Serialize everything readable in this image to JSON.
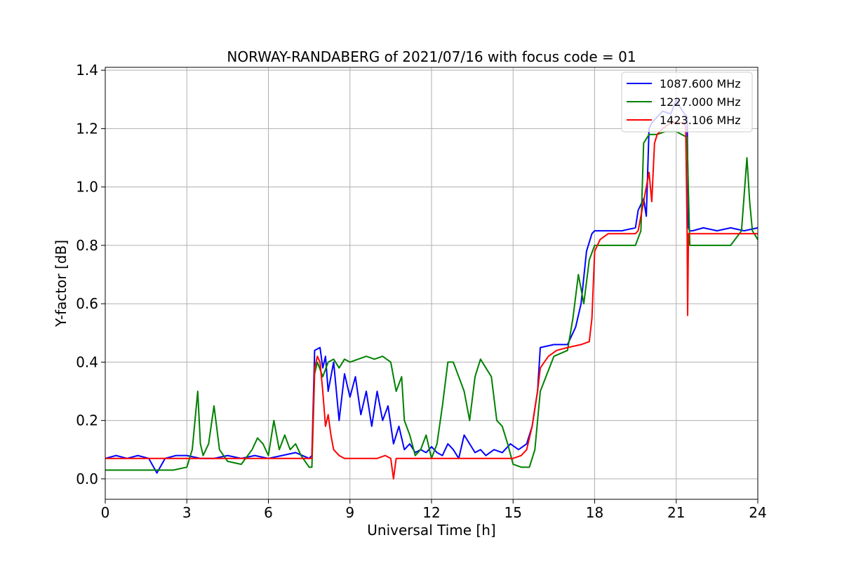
{
  "chart_data": {
    "type": "line",
    "title": "NORWAY-RANDABERG of 2021/07/16 with focus code = 01",
    "xlabel": "Universal Time [h]",
    "ylabel": "Y-factor [dB]",
    "xlim": [
      0,
      24
    ],
    "ylim": [
      -0.07,
      1.41
    ],
    "xticks": [
      0,
      3,
      6,
      9,
      12,
      15,
      18,
      21,
      24
    ],
    "xtick_labels": [
      "0",
      "3",
      "6",
      "9",
      "12",
      "15",
      "18",
      "21",
      "24"
    ],
    "yticks": [
      0.0,
      0.2,
      0.4,
      0.6,
      0.8,
      1.0,
      1.2,
      1.4
    ],
    "ytick_labels": [
      "0.0",
      "0.2",
      "0.4",
      "0.6",
      "0.8",
      "1.0",
      "1.2",
      "1.4"
    ],
    "grid": true,
    "legend_position": "top-right",
    "series": [
      {
        "name": "1087.600 MHz",
        "color": "#0000ff",
        "x": [
          0,
          0.4,
          0.8,
          1.2,
          1.6,
          1.9,
          2.2,
          2.6,
          3.0,
          3.5,
          4.0,
          4.5,
          5.0,
          5.5,
          6.0,
          6.5,
          7.0,
          7.5,
          7.6,
          7.7,
          7.9,
          8.0,
          8.1,
          8.2,
          8.4,
          8.6,
          8.8,
          9.0,
          9.2,
          9.4,
          9.6,
          9.8,
          10.0,
          10.2,
          10.4,
          10.6,
          10.8,
          11.0,
          11.2,
          11.4,
          11.6,
          11.8,
          12.0,
          12.2,
          12.4,
          12.6,
          12.8,
          13.0,
          13.2,
          13.4,
          13.6,
          13.8,
          14.0,
          14.3,
          14.6,
          14.9,
          15.2,
          15.5,
          15.7,
          15.9,
          16.0,
          16.5,
          17.0,
          17.3,
          17.5,
          17.7,
          17.9,
          18.0,
          18.5,
          19.0,
          19.5,
          19.6,
          19.8,
          19.9,
          20.0,
          20.1,
          20.3,
          20.5,
          20.8,
          21.0,
          21.1,
          21.3,
          21.4,
          21.45,
          21.5,
          21.6,
          22.0,
          22.5,
          23.0,
          23.5,
          24.0
        ],
        "y": [
          0.07,
          0.08,
          0.07,
          0.08,
          0.07,
          0.02,
          0.07,
          0.08,
          0.08,
          0.07,
          0.07,
          0.08,
          0.07,
          0.08,
          0.07,
          0.08,
          0.09,
          0.07,
          0.08,
          0.44,
          0.45,
          0.38,
          0.42,
          0.3,
          0.4,
          0.2,
          0.36,
          0.28,
          0.35,
          0.22,
          0.3,
          0.18,
          0.3,
          0.2,
          0.25,
          0.12,
          0.18,
          0.1,
          0.12,
          0.09,
          0.1,
          0.09,
          0.11,
          0.09,
          0.08,
          0.12,
          0.1,
          0.07,
          0.15,
          0.12,
          0.09,
          0.1,
          0.08,
          0.1,
          0.09,
          0.12,
          0.1,
          0.12,
          0.18,
          0.3,
          0.45,
          0.46,
          0.46,
          0.52,
          0.6,
          0.78,
          0.84,
          0.85,
          0.85,
          0.85,
          0.86,
          0.92,
          0.96,
          0.9,
          1.2,
          1.22,
          1.24,
          1.26,
          1.25,
          1.3,
          1.28,
          1.25,
          1.24,
          0.86,
          0.85,
          0.85,
          0.86,
          0.85,
          0.86,
          0.85,
          0.86
        ]
      },
      {
        "name": "1227.000 MHz",
        "color": "#008000",
        "x": [
          0,
          0.5,
          1.0,
          1.5,
          2.0,
          2.5,
          3.0,
          3.2,
          3.4,
          3.5,
          3.6,
          3.8,
          4.0,
          4.2,
          4.5,
          5.0,
          5.4,
          5.6,
          5.8,
          6.0,
          6.2,
          6.4,
          6.6,
          6.8,
          7.0,
          7.2,
          7.5,
          7.6,
          7.7,
          7.8,
          8.0,
          8.2,
          8.4,
          8.6,
          8.8,
          9.0,
          9.3,
          9.6,
          9.9,
          10.2,
          10.5,
          10.7,
          10.9,
          11.0,
          11.2,
          11.4,
          11.6,
          11.8,
          12.0,
          12.2,
          12.4,
          12.6,
          12.8,
          13.0,
          13.2,
          13.4,
          13.6,
          13.8,
          14.0,
          14.2,
          14.4,
          14.6,
          14.8,
          15.0,
          15.3,
          15.6,
          15.8,
          16.0,
          16.5,
          17.0,
          17.2,
          17.4,
          17.6,
          17.8,
          18.0,
          18.5,
          19.0,
          19.5,
          19.7,
          19.8,
          20.0,
          20.3,
          20.6,
          21.0,
          21.2,
          21.4,
          21.45,
          21.5,
          21.7,
          22.0,
          22.5,
          23.0,
          23.4,
          23.6,
          23.7,
          23.8,
          24.0
        ],
        "y": [
          0.03,
          0.03,
          0.03,
          0.03,
          0.03,
          0.03,
          0.04,
          0.1,
          0.3,
          0.12,
          0.08,
          0.12,
          0.25,
          0.1,
          0.06,
          0.05,
          0.1,
          0.14,
          0.12,
          0.08,
          0.2,
          0.1,
          0.15,
          0.1,
          0.12,
          0.08,
          0.04,
          0.04,
          0.36,
          0.4,
          0.35,
          0.4,
          0.41,
          0.38,
          0.41,
          0.4,
          0.41,
          0.42,
          0.41,
          0.42,
          0.4,
          0.3,
          0.35,
          0.2,
          0.15,
          0.08,
          0.1,
          0.15,
          0.07,
          0.12,
          0.25,
          0.4,
          0.4,
          0.35,
          0.3,
          0.2,
          0.35,
          0.41,
          0.38,
          0.35,
          0.2,
          0.18,
          0.12,
          0.05,
          0.04,
          0.04,
          0.1,
          0.3,
          0.42,
          0.44,
          0.55,
          0.7,
          0.6,
          0.75,
          0.8,
          0.8,
          0.8,
          0.8,
          0.85,
          1.15,
          1.18,
          1.18,
          1.19,
          1.19,
          1.18,
          1.17,
          0.98,
          0.8,
          0.8,
          0.8,
          0.8,
          0.8,
          0.85,
          1.1,
          0.95,
          0.85,
          0.82
        ]
      },
      {
        "name": "1423.106 MHz",
        "color": "#ff0000",
        "x": [
          0,
          0.5,
          1.0,
          1.5,
          2.0,
          2.5,
          3.0,
          4.0,
          5.0,
          6.0,
          7.0,
          7.5,
          7.6,
          7.7,
          7.8,
          7.9,
          8.0,
          8.1,
          8.2,
          8.3,
          8.4,
          8.6,
          8.8,
          9.0,
          9.5,
          10.0,
          10.3,
          10.5,
          10.6,
          10.7,
          11.0,
          11.5,
          12.0,
          13.0,
          14.0,
          15.0,
          15.3,
          15.5,
          15.7,
          15.9,
          16.0,
          16.3,
          16.6,
          17.0,
          17.5,
          17.8,
          17.9,
          18.0,
          18.2,
          18.5,
          19.0,
          19.5,
          19.6,
          19.8,
          19.9,
          20.0,
          20.1,
          20.2,
          20.3,
          20.5,
          20.8,
          21.0,
          21.3,
          21.35,
          21.4,
          21.42,
          21.45,
          21.5,
          21.7,
          22.0,
          22.5,
          23.0,
          23.5,
          24.0
        ],
        "y": [
          0.07,
          0.07,
          0.07,
          0.07,
          0.07,
          0.07,
          0.07,
          0.07,
          0.07,
          0.07,
          0.07,
          0.07,
          0.07,
          0.38,
          0.42,
          0.4,
          0.3,
          0.18,
          0.22,
          0.15,
          0.1,
          0.08,
          0.07,
          0.07,
          0.07,
          0.07,
          0.08,
          0.07,
          0.0,
          0.07,
          0.07,
          0.07,
          0.07,
          0.07,
          0.07,
          0.07,
          0.08,
          0.1,
          0.18,
          0.3,
          0.38,
          0.42,
          0.44,
          0.45,
          0.46,
          0.47,
          0.55,
          0.78,
          0.82,
          0.84,
          0.84,
          0.84,
          0.85,
          0.95,
          1.0,
          1.05,
          0.95,
          1.15,
          1.18,
          1.2,
          1.22,
          1.22,
          1.22,
          1.2,
          0.84,
          0.56,
          0.84,
          0.84,
          0.84,
          0.84,
          0.84,
          0.84,
          0.84,
          0.84
        ]
      }
    ]
  }
}
